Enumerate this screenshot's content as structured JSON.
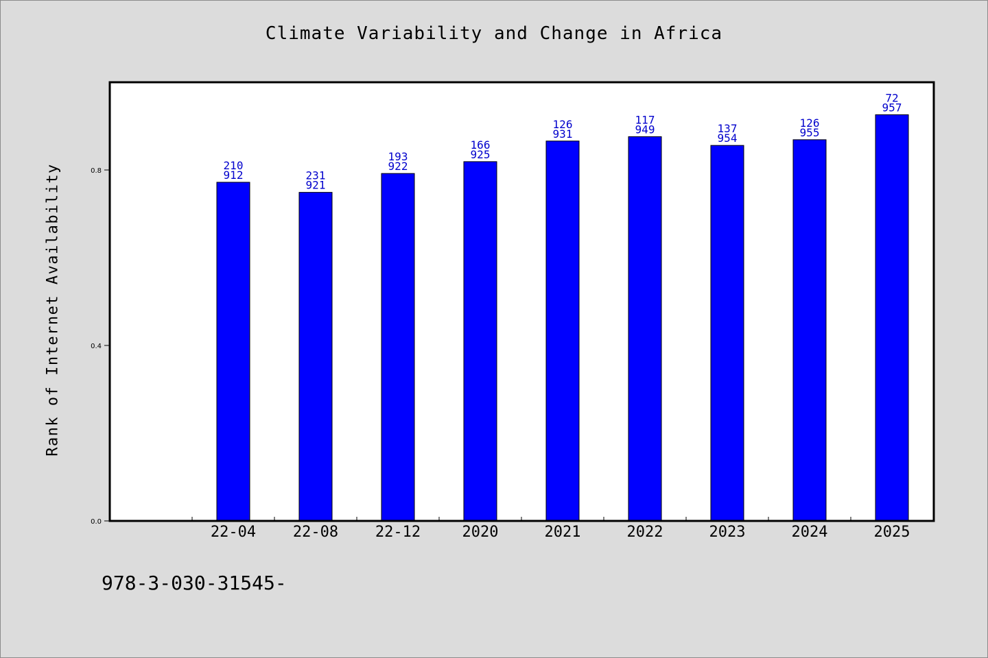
{
  "chart_data": {
    "type": "bar",
    "title": "Climate Variability and Change in Africa",
    "xlabel": "",
    "ylabel": "Rank of Internet Availability",
    "categories": [
      "22-04",
      "22-08",
      "22-12",
      "2020",
      "2021",
      "2022",
      "2023",
      "2024",
      "2025"
    ],
    "values": [
      0.772,
      0.749,
      0.792,
      0.819,
      0.866,
      0.876,
      0.856,
      0.869,
      0.926
    ],
    "bar_labels": [
      [
        "210",
        "912"
      ],
      [
        "231",
        "921"
      ],
      [
        "193",
        "922"
      ],
      [
        "166",
        "925"
      ],
      [
        "126",
        "931"
      ],
      [
        "117",
        "949"
      ],
      [
        "137",
        "954"
      ],
      [
        "126",
        "955"
      ],
      [
        "72",
        "957"
      ]
    ],
    "ylim": [
      0,
      1.0
    ],
    "yticks": [
      0.0,
      0.4,
      0.8
    ],
    "ytick_labels": [
      "0.0",
      "0.4",
      "0.8"
    ],
    "grid": false,
    "legend": "none",
    "bar_color": "#0000ff",
    "label_color": "#0000cc",
    "background": "#dcdcdc",
    "plot_background": "#ffffff"
  },
  "footnote": "978-3-030-31545-"
}
